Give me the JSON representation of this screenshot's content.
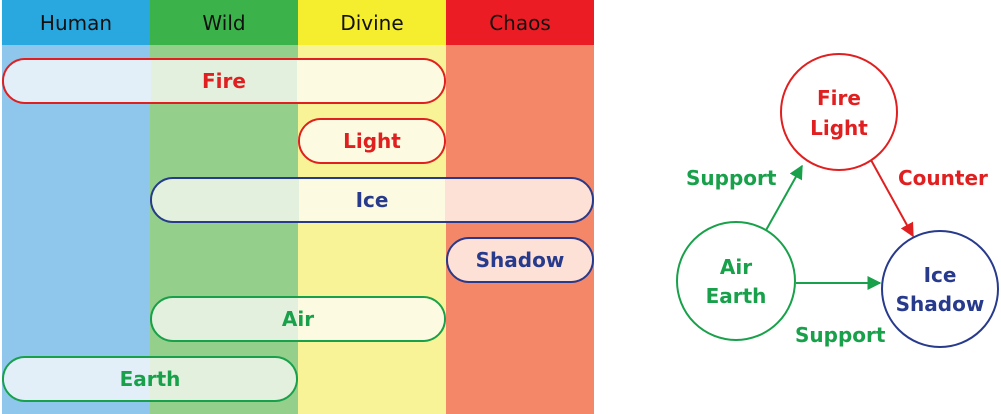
{
  "columns": [
    {
      "name": "Human",
      "header_color": "#29a8e0",
      "body_color": "#8ec6ec"
    },
    {
      "name": "Wild",
      "header_color": "#3cb34a",
      "body_color": "#94cf8b"
    },
    {
      "name": "Divine",
      "header_color": "#f5ee2e",
      "body_color": "#f7f396"
    },
    {
      "name": "Chaos",
      "header_color": "#ec1c24",
      "body_color": "#f58769"
    }
  ],
  "bars": [
    {
      "label": "Fire",
      "start": 0,
      "end": 3,
      "row": 0,
      "color": "#e02020",
      "border": "#e02020"
    },
    {
      "label": "Light",
      "start": 2,
      "end": 3,
      "row": 1,
      "color": "#e02020",
      "border": "#e02020"
    },
    {
      "label": "Ice",
      "start": 1,
      "end": 4,
      "row": 2,
      "color": "#273a8c",
      "border": "#273a8c"
    },
    {
      "label": "Shadow",
      "start": 3,
      "end": 4,
      "row": 3,
      "color": "#273a8c",
      "border": "#273a8c"
    },
    {
      "label": "Air",
      "start": 1,
      "end": 3,
      "row": 4,
      "color": "#18a14a",
      "border": "#18a14a"
    },
    {
      "label": "Earth",
      "start": 0,
      "end": 2,
      "row": 5,
      "color": "#18a14a",
      "border": "#18a14a"
    }
  ],
  "bar_fill_colors": [
    "#e2eff9",
    "#e2f0dd",
    "#fcfbe1",
    "#fde0d6"
  ],
  "nodes": {
    "fire_light": {
      "lines": [
        "Fire",
        "Light"
      ],
      "color": "#e02020"
    },
    "air_earth": {
      "lines": [
        "Air",
        "Earth"
      ],
      "color": "#18a14a"
    },
    "ice_shadow": {
      "lines": [
        "Ice",
        "Shadow"
      ],
      "color": "#273a8c"
    }
  },
  "edges": {
    "support_top": {
      "label": "Support",
      "color": "#18a14a"
    },
    "counter": {
      "label": "Counter",
      "color": "#e02020"
    },
    "support_bottom": {
      "label": "Support",
      "color": "#18a14a"
    }
  }
}
